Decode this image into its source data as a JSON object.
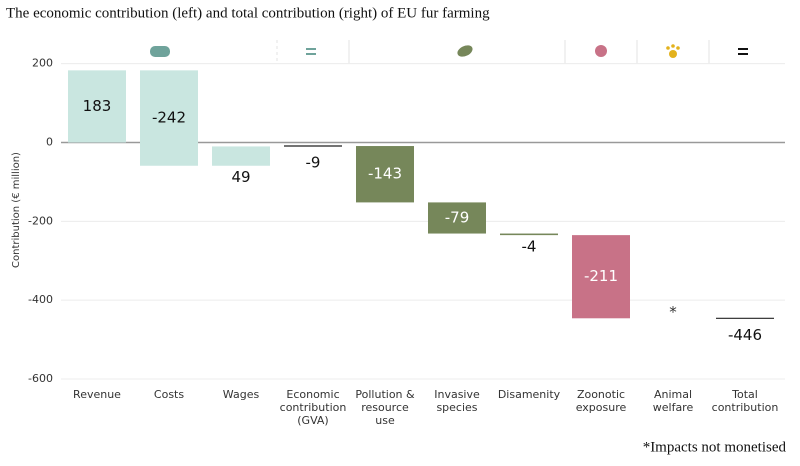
{
  "chart_data": {
    "type": "waterfall",
    "title": "The economic contribution (left) and total contribution (right) of EU fur farming",
    "y_label": "Contribution (€ million)",
    "note": "*Impacts not monetised",
    "categories": [
      "Revenue",
      "Costs",
      "Wages",
      "Economic contribution (GVA)",
      "Pollution & resource use",
      "Invasive species",
      "Disamenity",
      "Zoonotic exposure",
      "Animal welfare",
      "Total contribution"
    ],
    "values": [
      183,
      -242,
      49,
      -9,
      -143,
      -79,
      -4,
      -211,
      null,
      -446
    ],
    "value_labels": [
      "183",
      "-242",
      "49",
      "-9",
      "-143",
      "-79",
      "-4",
      "-211",
      "*",
      "-446"
    ],
    "measures": [
      "relative",
      "relative",
      "relative",
      "total",
      "relative",
      "relative",
      "relative",
      "relative",
      "relative",
      "total"
    ],
    "colors": [
      "#c9e6e0",
      "#c9e6e0",
      "#c9e6e0",
      "#222222",
      "#76875a",
      "#76875a",
      "#76875a",
      "#c87287",
      "#c87287",
      "#222222"
    ],
    "ylim": [
      -600,
      260
    ],
    "yticks": [
      -600,
      -400,
      -200,
      0,
      200
    ],
    "grid": true
  }
}
